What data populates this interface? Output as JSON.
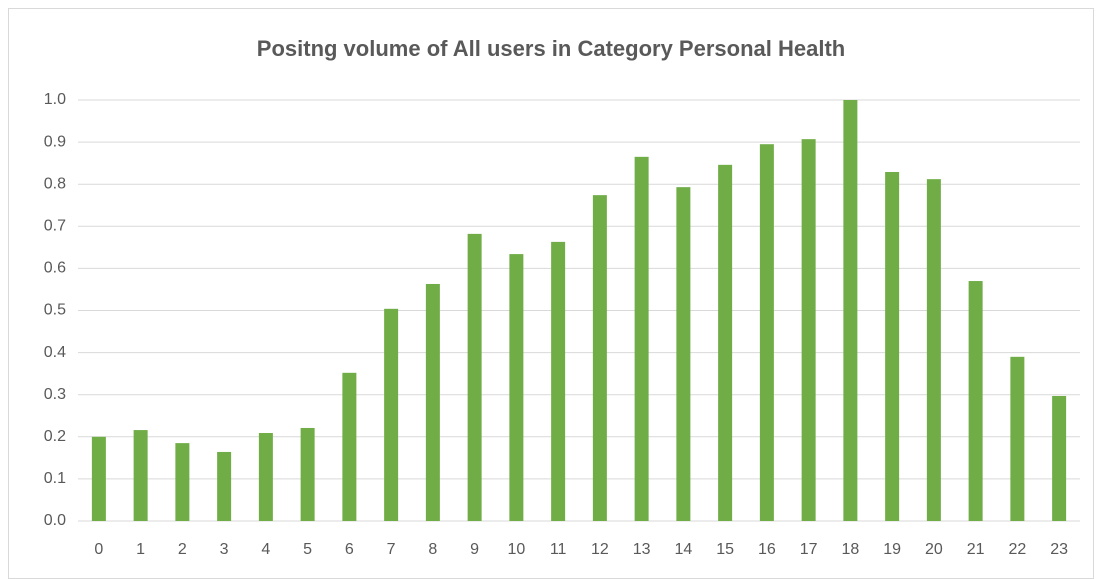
{
  "chart_data": {
    "type": "bar",
    "title": "Positng volume of All users in Category Personal Health",
    "categories": [
      "0",
      "1",
      "2",
      "3",
      "4",
      "5",
      "6",
      "7",
      "8",
      "9",
      "10",
      "11",
      "12",
      "13",
      "14",
      "15",
      "16",
      "17",
      "18",
      "19",
      "20",
      "21",
      "22",
      "23"
    ],
    "values": [
      0.2,
      0.216,
      0.185,
      0.164,
      0.209,
      0.221,
      0.352,
      0.504,
      0.563,
      0.682,
      0.634,
      0.663,
      0.774,
      0.865,
      0.793,
      0.846,
      0.895,
      0.907,
      1.0,
      0.829,
      0.812,
      0.57,
      0.39,
      0.297
    ],
    "color": "#70ad47",
    "ylim": [
      0,
      1.0
    ],
    "yticks": [
      {
        "value": 0,
        "label": "0.0"
      },
      0.1,
      0.2,
      0.3,
      0.4,
      0.5,
      0.6,
      0.7,
      0.8,
      0.9,
      {
        "value": 1.0,
        "label": "1.0"
      }
    ],
    "grid": true
  }
}
